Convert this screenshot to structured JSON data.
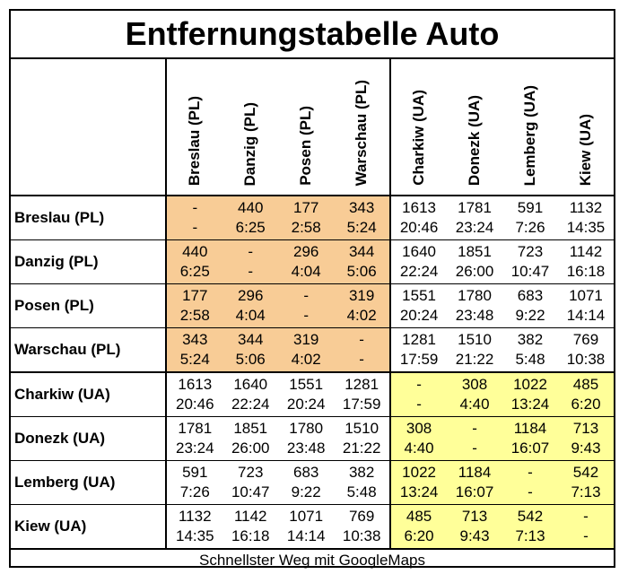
{
  "title": "Entfernungstabelle Auto",
  "columns": [
    "Breslau (PL)",
    "Danzig (PL)",
    "Posen (PL)",
    "Warschau (PL)",
    "Charkiw (UA)",
    "Donezk (UA)",
    "Lemberg (UA)",
    "Kiew (UA)"
  ],
  "rows": [
    {
      "label": "Breslau (PL)",
      "km": [
        "-",
        "440",
        "177",
        "343",
        "1613",
        "1781",
        "591",
        "1132"
      ],
      "time": [
        "-",
        "6:25",
        "2:58",
        "5:24",
        "20:46",
        "23:24",
        "7:26",
        "14:35"
      ]
    },
    {
      "label": "Danzig (PL)",
      "km": [
        "440",
        "-",
        "296",
        "344",
        "1640",
        "1851",
        "723",
        "1142"
      ],
      "time": [
        "6:25",
        "-",
        "4:04",
        "5:06",
        "22:24",
        "26:00",
        "10:47",
        "16:18"
      ]
    },
    {
      "label": "Posen (PL)",
      "km": [
        "177",
        "296",
        "-",
        "319",
        "1551",
        "1780",
        "683",
        "1071"
      ],
      "time": [
        "2:58",
        "4:04",
        "-",
        "4:02",
        "20:24",
        "23:48",
        "9:22",
        "14:14"
      ]
    },
    {
      "label": "Warschau (PL)",
      "km": [
        "343",
        "344",
        "319",
        "-",
        "1281",
        "1510",
        "382",
        "769"
      ],
      "time": [
        "5:24",
        "5:06",
        "4:02",
        "-",
        "17:59",
        "21:22",
        "5:48",
        "10:38"
      ]
    },
    {
      "label": "Charkiw (UA)",
      "km": [
        "1613",
        "1640",
        "1551",
        "1281",
        "-",
        "308",
        "1022",
        "485"
      ],
      "time": [
        "20:46",
        "22:24",
        "20:24",
        "17:59",
        "-",
        "4:40",
        "13:24",
        "6:20"
      ]
    },
    {
      "label": "Donezk (UA)",
      "km": [
        "1781",
        "1851",
        "1780",
        "1510",
        "308",
        "-",
        "1184",
        "713"
      ],
      "time": [
        "23:24",
        "26:00",
        "23:48",
        "21:22",
        "4:40",
        "-",
        "16:07",
        "9:43"
      ]
    },
    {
      "label": "Lemberg (UA)",
      "km": [
        "591",
        "723",
        "683",
        "382",
        "1022",
        "1184",
        "-",
        "542"
      ],
      "time": [
        "7:26",
        "10:47",
        "9:22",
        "5:48",
        "13:24",
        "16:07",
        "-",
        "7:13"
      ]
    },
    {
      "label": "Kiew (UA)",
      "km": [
        "1132",
        "1142",
        "1071",
        "769",
        "485",
        "713",
        "542",
        "-"
      ],
      "time": [
        "14:35",
        "16:18",
        "14:14",
        "10:38",
        "6:20",
        "9:43",
        "7:13",
        "-"
      ]
    }
  ],
  "footer": "Schnellster Weg mit GoogleMaps",
  "colors": {
    "pl_block": "#F8CC96",
    "ua_block": "#FFFF99"
  }
}
